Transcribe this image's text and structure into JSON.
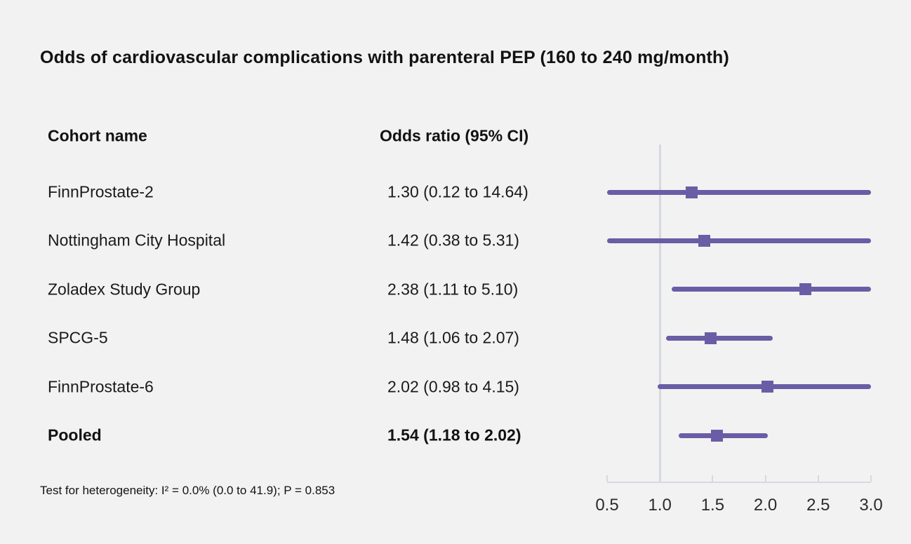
{
  "title": "Odds of cardiovascular complications with parenteral PEP (160 to 240 mg/month)",
  "table": {
    "cohort_header": "Cohort name",
    "or_header": "Odds ratio (95% CI)"
  },
  "footnote": "Test for heterogeneity: I² = 0.0% (0.0 to 41.9); P = 0.853",
  "colors": {
    "accent_purple": "#6a5da6",
    "axis_gray": "#d5d9e0",
    "background": "#f2f2f2",
    "text": "#1a1a1a"
  },
  "chart_data": {
    "type": "forest",
    "title": "Odds of cardiovascular complications with parenteral PEP (160 to 240 mg/month)",
    "xlim": [
      0.5,
      3.0
    ],
    "reference_line": 1.0,
    "tick_values": [
      0.5,
      1.0,
      1.5,
      2.0,
      2.5,
      3.0
    ],
    "tick_labels": [
      "0.5",
      "1.0",
      "1.5",
      "2.0",
      "2.5",
      "3.0"
    ],
    "grid": false,
    "rows": [
      {
        "label": "FinnProstate-2",
        "or_text": "1.30 (0.12 to 14.64)",
        "estimate": 1.3,
        "ci_low": 0.12,
        "ci_high": 14.64,
        "bold": false
      },
      {
        "label": "Nottingham City Hospital",
        "or_text": "1.42 (0.38 to 5.31)",
        "estimate": 1.42,
        "ci_low": 0.38,
        "ci_high": 5.31,
        "bold": false
      },
      {
        "label": "Zoladex Study Group",
        "or_text": "2.38 (1.11 to 5.10)",
        "estimate": 2.38,
        "ci_low": 1.11,
        "ci_high": 5.1,
        "bold": false
      },
      {
        "label": "SPCG-5",
        "or_text": "1.48 (1.06 to 2.07)",
        "estimate": 1.48,
        "ci_low": 1.06,
        "ci_high": 2.07,
        "bold": false
      },
      {
        "label": "FinnProstate-6",
        "or_text": "2.02 (0.98 to 4.15)",
        "estimate": 2.02,
        "ci_low": 0.98,
        "ci_high": 4.15,
        "bold": false
      },
      {
        "label": "Pooled",
        "or_text": "1.54 (1.18 to 2.02)",
        "estimate": 1.54,
        "ci_low": 1.18,
        "ci_high": 2.02,
        "bold": true
      }
    ]
  }
}
